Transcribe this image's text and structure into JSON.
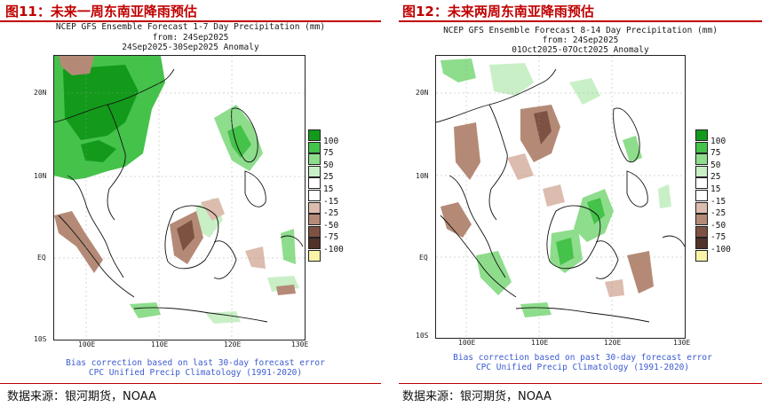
{
  "panels": [
    {
      "figure_title": "图11：未来一周东南亚降雨预估",
      "header": [
        "NCEP GFS Ensemble Forecast 1-7 Day Precipitation (mm)",
        "from: 24Sep2025",
        "24Sep2025-30Sep2025 Anomaly"
      ],
      "footer": [
        "Bias correction based on last 30-day forecast error",
        "CPC Unified Precip Climatology (1991-2020)"
      ],
      "source": "数据来源：银河期货，NOAA"
    },
    {
      "figure_title": "图12：未来两周东南亚降雨预估",
      "header": [
        "NCEP GFS Ensemble Forecast 8-14 Day Precipitation (mm)",
        "from: 24Sep2025",
        "01Oct2025-07Oct2025 Anomaly"
      ],
      "footer": [
        "Bias correction based on past 30-day forecast error",
        "CPC Unified Precip Climatology (1991-2020)"
      ],
      "source": "数据来源：银河期货，NOAA"
    }
  ],
  "axes": {
    "lat_labels": [
      "20N",
      "10N",
      "EQ",
      "10S"
    ],
    "lon_labels": [
      "100E",
      "110E",
      "120E",
      "130E"
    ]
  },
  "legend": {
    "labels": [
      "100",
      "75",
      "50",
      "25",
      "15",
      "-15",
      "-25",
      "-50",
      "-75",
      "-100"
    ],
    "colors": [
      "#139a1b",
      "#44c24a",
      "#8edd8c",
      "#c9efc7",
      "#ffffff",
      "#ffffff",
      "#dcbcae",
      "#b48a76",
      "#7d5243",
      "#51332a",
      "#fbf3a8"
    ]
  },
  "colors": {
    "title_red": "#c00000",
    "footer_blue": "#3b5bd0",
    "land_outline": "#111111"
  }
}
